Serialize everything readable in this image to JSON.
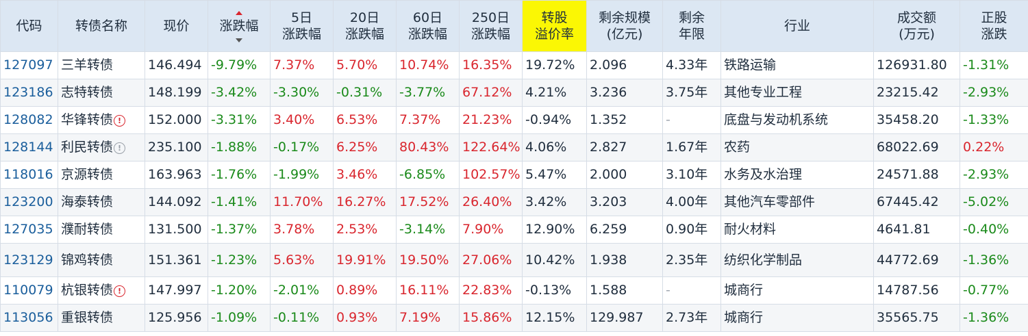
{
  "headers": {
    "code": "代码",
    "name": "转债名称",
    "price": "现价",
    "change": "涨跌幅",
    "d5_l1": "5日",
    "d5_l2": "涨跌幅",
    "d20_l1": "20日",
    "d20_l2": "涨跌幅",
    "d60_l1": "60日",
    "d60_l2": "涨跌幅",
    "d250_l1": "250日",
    "d250_l2": "涨跌幅",
    "premium_l1": "转股",
    "premium_l2": "溢价率",
    "scale_l1": "剩余规模",
    "scale_l2": "(亿元)",
    "years_l1": "剩余",
    "years_l2": "年限",
    "industry": "行业",
    "volume_l1": "成交额",
    "volume_l2": "(万元)",
    "stock_l1": "正股",
    "stock_l2": "涨跌"
  },
  "colors": {
    "up": "#d9262e",
    "down": "#1a8a1a",
    "header_bg": "#dce7f3",
    "highlight": "#fbf704"
  },
  "rows": [
    {
      "code": "127097",
      "name": "三羊转债",
      "icon": "",
      "price": "146.494",
      "change": "-9.79%",
      "d5": "7.37%",
      "d20": "5.70%",
      "d60": "10.74%",
      "d250": "16.35%",
      "premium": "19.72%",
      "scale": "2.096",
      "years": "4.33年",
      "industry": "铁路运输",
      "volume": "126931.80",
      "stock": "-1.31%"
    },
    {
      "code": "123186",
      "name": "志特转债",
      "icon": "",
      "price": "148.199",
      "change": "-3.42%",
      "d5": "-3.30%",
      "d20": "-0.31%",
      "d60": "-3.77%",
      "d250": "67.12%",
      "premium": "4.21%",
      "scale": "3.236",
      "years": "3.75年",
      "industry": "其他专业工程",
      "volume": "23215.42",
      "stock": "-2.93%"
    },
    {
      "code": "128082",
      "name": "华锋转债",
      "icon": "alert",
      "price": "152.000",
      "change": "-3.31%",
      "d5": "3.40%",
      "d20": "6.53%",
      "d60": "7.37%",
      "d250": "21.23%",
      "premium": "-0.94%",
      "scale": "1.352",
      "years": "-",
      "industry": "底盘与发动机系统",
      "volume": "35458.20",
      "stock": "-1.33%"
    },
    {
      "code": "128144",
      "name": "利民转债",
      "icon": "info",
      "price": "235.100",
      "change": "-1.88%",
      "d5": "-0.17%",
      "d20": "6.25%",
      "d60": "80.43%",
      "d250": "122.64%",
      "premium": "4.06%",
      "scale": "2.827",
      "years": "1.67年",
      "industry": "农药",
      "volume": "68022.69",
      "stock": "0.22%"
    },
    {
      "code": "118016",
      "name": "京源转债",
      "icon": "",
      "price": "163.963",
      "change": "-1.76%",
      "d5": "-1.99%",
      "d20": "3.46%",
      "d60": "-6.85%",
      "d250": "102.57%",
      "premium": "5.47%",
      "scale": "2.000",
      "years": "3.10年",
      "industry": "水务及水治理",
      "volume": "24571.88",
      "stock": "-2.93%"
    },
    {
      "code": "123200",
      "name": "海泰转债",
      "icon": "",
      "price": "144.092",
      "change": "-1.41%",
      "d5": "11.70%",
      "d20": "16.27%",
      "d60": "17.52%",
      "d250": "26.40%",
      "premium": "3.42%",
      "scale": "3.203",
      "years": "4.00年",
      "industry": "其他汽车零部件",
      "volume": "67445.42",
      "stock": "-5.02%"
    },
    {
      "code": "127035",
      "name": "濮耐转债",
      "icon": "",
      "price": "131.500",
      "change": "-1.37%",
      "d5": "3.78%",
      "d20": "2.53%",
      "d60": "-3.14%",
      "d250": "7.90%",
      "premium": "12.90%",
      "scale": "6.259",
      "years": "0.90年",
      "industry": "耐火材料",
      "volume": "4641.81",
      "stock": "-0.40%"
    },
    {
      "code": "123129",
      "name": "锦鸡转债",
      "icon": "",
      "price": "151.361",
      "change": "-1.23%",
      "d5": "5.63%",
      "d20": "19.91%",
      "d60": "19.50%",
      "d250": "27.06%",
      "premium": "10.42%",
      "scale": "1.938",
      "years": "2.35年",
      "industry": "纺织化学制品",
      "volume": "44772.69",
      "stock": "-1.36%"
    },
    {
      "code": "110079",
      "name": "杭银转债",
      "icon": "alert",
      "price": "147.997",
      "change": "-1.20%",
      "d5": "-2.01%",
      "d20": "0.89%",
      "d60": "16.11%",
      "d250": "22.83%",
      "premium": "-0.13%",
      "scale": "1.588",
      "years": "-",
      "industry": "城商行",
      "volume": "14787.56",
      "stock": "-0.77%"
    },
    {
      "code": "113056",
      "name": "重银转债",
      "icon": "",
      "price": "125.956",
      "change": "-1.09%",
      "d5": "-0.11%",
      "d20": "0.93%",
      "d60": "7.19%",
      "d250": "15.86%",
      "premium": "12.15%",
      "scale": "129.987",
      "years": "2.73年",
      "industry": "城商行",
      "volume": "35565.75",
      "stock": "-1.36%"
    }
  ]
}
